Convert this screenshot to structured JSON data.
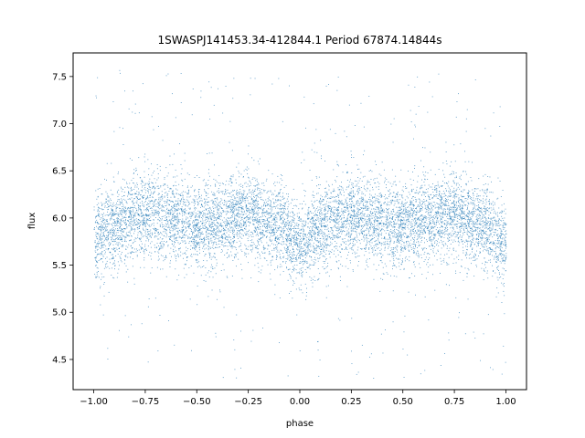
{
  "chart_data": {
    "type": "scatter",
    "title": "1SWASPJ141453.34-412844.1 Period 67874.14844s",
    "xlabel": "phase",
    "ylabel": "flux",
    "xlim": [
      -1.1,
      1.1
    ],
    "ylim": [
      4.18,
      7.75
    ],
    "xticks": [
      -1.0,
      -0.75,
      -0.5,
      -0.25,
      0.0,
      0.25,
      0.5,
      0.75,
      1.0
    ],
    "xtick_labels": [
      "−1.00",
      "−0.75",
      "−0.50",
      "−0.25",
      "0.00",
      "0.25",
      "0.50",
      "0.75",
      "1.00"
    ],
    "yticks": [
      4.5,
      5.0,
      5.5,
      6.0,
      6.5,
      7.0,
      7.5
    ],
    "ytick_labels": [
      "4.5",
      "5.0",
      "5.5",
      "6.0",
      "6.5",
      "7.0",
      "7.5"
    ],
    "grid": false,
    "marker_color": "#1f77b4",
    "series": [
      {
        "profile": [
          {
            "phase": -1.0,
            "mean_flux": 5.78
          },
          {
            "phase": -0.9,
            "mean_flux": 5.92
          },
          {
            "phase": -0.75,
            "mean_flux": 6.05
          },
          {
            "phase": -0.6,
            "mean_flux": 6.0
          },
          {
            "phase": -0.5,
            "mean_flux": 5.92
          },
          {
            "phase": -0.4,
            "mean_flux": 5.95
          },
          {
            "phase": -0.25,
            "mean_flux": 6.05
          },
          {
            "phase": -0.1,
            "mean_flux": 5.92
          },
          {
            "phase": 0.0,
            "mean_flux": 5.72
          },
          {
            "phase": 0.1,
            "mean_flux": 5.9
          },
          {
            "phase": 0.25,
            "mean_flux": 6.05
          },
          {
            "phase": 0.4,
            "mean_flux": 5.96
          },
          {
            "phase": 0.5,
            "mean_flux": 5.92
          },
          {
            "phase": 0.6,
            "mean_flux": 5.98
          },
          {
            "phase": 0.75,
            "mean_flux": 6.05
          },
          {
            "phase": 0.9,
            "mean_flux": 5.92
          },
          {
            "phase": 1.0,
            "mean_flux": 5.72
          }
        ],
        "core_scatter": 0.22,
        "outlier_range": [
          4.3,
          7.6
        ]
      }
    ]
  }
}
